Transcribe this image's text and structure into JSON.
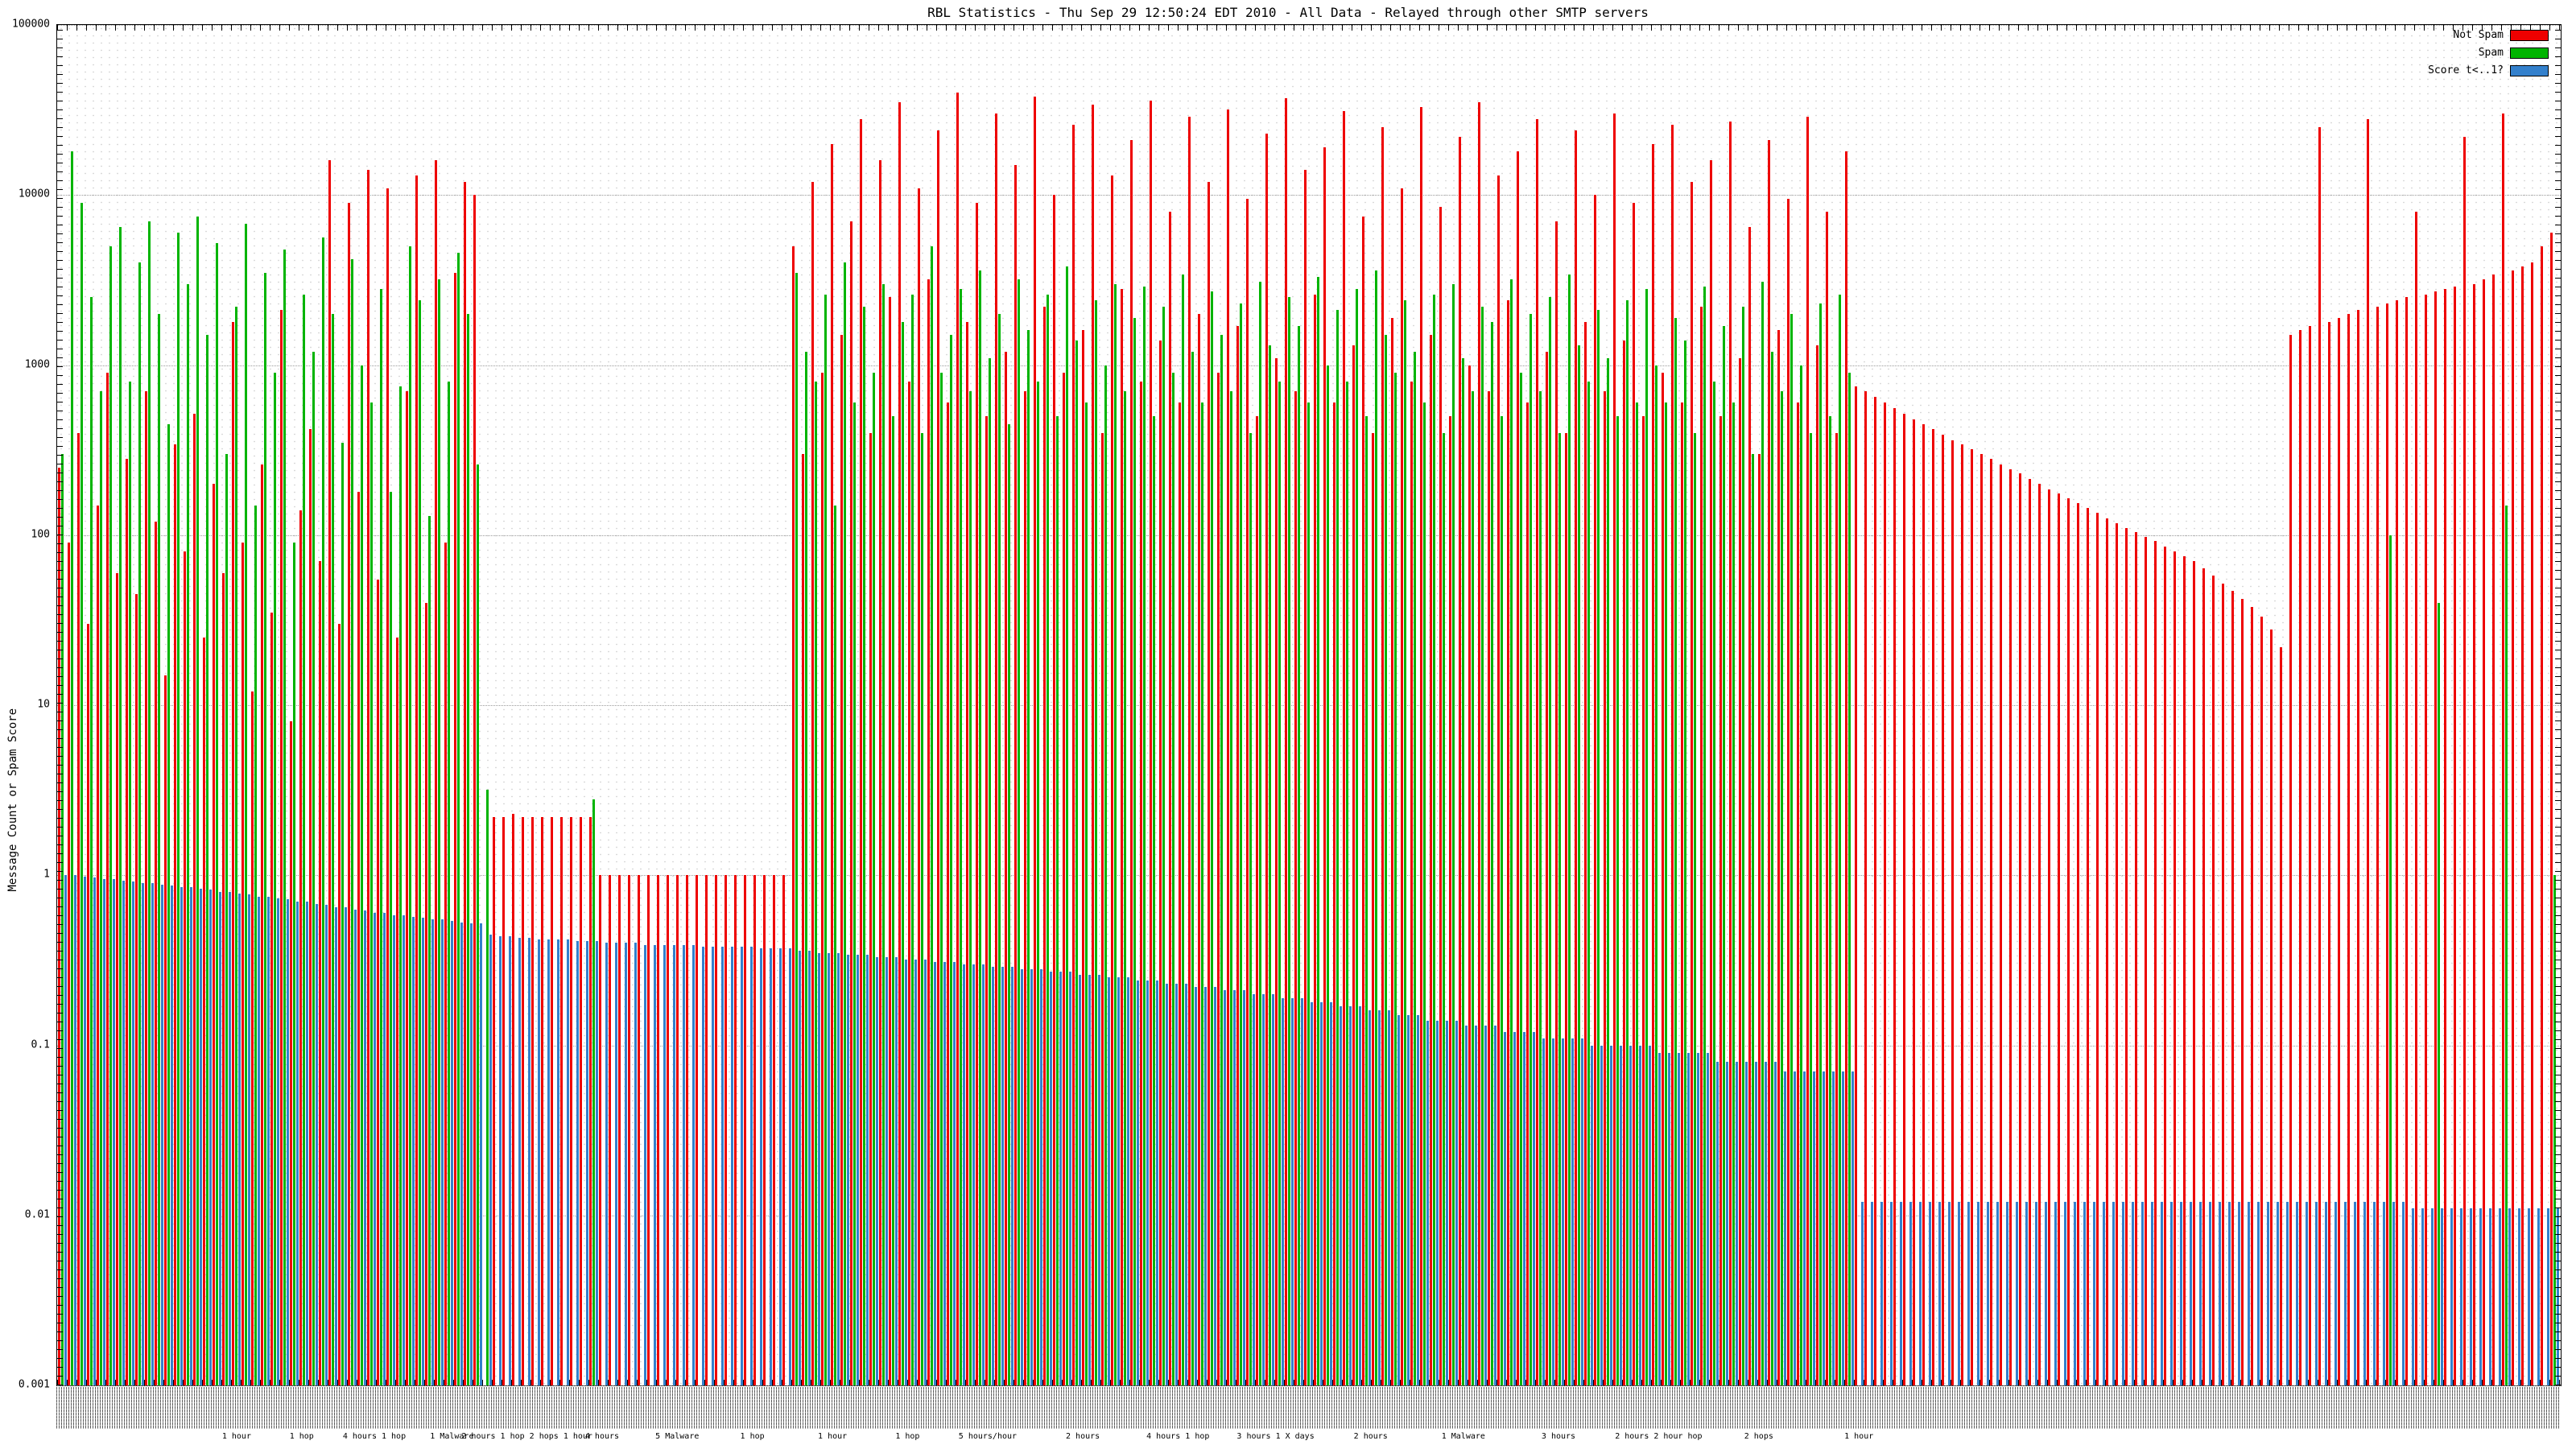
{
  "page": {
    "background": "#ffffff"
  },
  "chart_data": {
    "type": "bar",
    "title": "RBL Statistics - Thu Sep 29 12:50:24 EDT 2010 - All Data - Relayed through other SMTP servers",
    "ylabel": "Message Count or Spam Score",
    "xlabel": "",
    "y_scale": "log",
    "ylim": [
      0.001,
      100000
    ],
    "y_ticks": [
      "100000",
      "10000",
      "1000",
      "100",
      "10",
      "1",
      "0.1",
      "0.01",
      "0.001"
    ],
    "grid": "fine dotted minor grid, dotted major decade lines",
    "legend_position": "top-right",
    "series_names": [
      "Not Spam",
      "Spam",
      "Score t<..1?"
    ],
    "series_colors": [
      "#ee0000",
      "#00b400",
      "#3380cc"
    ],
    "x_tick_labels": "dense rotated RBL/source labels along axis, illegible at capture resolution",
    "x_annotations": [
      {
        "pos": 0.072,
        "label": "1 hour"
      },
      {
        "pos": 0.098,
        "label": "1 hop"
      },
      {
        "pos": 0.127,
        "label": "4 hours 1 hop"
      },
      {
        "pos": 0.158,
        "label": "1 Malware"
      },
      {
        "pos": 0.188,
        "label": "2 hours 1 hop 2 hops 1 hour"
      },
      {
        "pos": 0.218,
        "label": "4 hours"
      },
      {
        "pos": 0.248,
        "label": "5 Malware"
      },
      {
        "pos": 0.278,
        "label": "1 hop"
      },
      {
        "pos": 0.31,
        "label": "1 hour"
      },
      {
        "pos": 0.34,
        "label": "1 hop"
      },
      {
        "pos": 0.372,
        "label": "5 hours/hour"
      },
      {
        "pos": 0.41,
        "label": "2 hours"
      },
      {
        "pos": 0.448,
        "label": "4 hours 1 hop"
      },
      {
        "pos": 0.487,
        "label": "3 hours 1 X days"
      },
      {
        "pos": 0.525,
        "label": "2 hours"
      },
      {
        "pos": 0.562,
        "label": "1 Malware"
      },
      {
        "pos": 0.6,
        "label": "3 hours"
      },
      {
        "pos": 0.64,
        "label": "2 hours 2 hour hop"
      },
      {
        "pos": 0.68,
        "label": "2 hops"
      },
      {
        "pos": 0.72,
        "label": "1 hour"
      }
    ],
    "groups": [
      [
        250,
        300,
        1.0
      ],
      [
        90,
        18000,
        1.0
      ],
      [
        400,
        9000,
        0.98
      ],
      [
        30,
        2500,
        0.97
      ],
      [
        150,
        700,
        0.95
      ],
      [
        900,
        5000,
        0.95
      ],
      [
        60,
        6500,
        0.93
      ],
      [
        280,
        800,
        0.92
      ],
      [
        45,
        4000,
        0.9
      ],
      [
        700,
        7000,
        0.9
      ],
      [
        120,
        2000,
        0.88
      ],
      [
        15,
        450,
        0.87
      ],
      [
        340,
        6000,
        0.85
      ],
      [
        80,
        3000,
        0.85
      ],
      [
        520,
        7500,
        0.83
      ],
      [
        25,
        1500,
        0.82
      ],
      [
        200,
        5200,
        0.8
      ],
      [
        60,
        300,
        0.8
      ],
      [
        1800,
        2200,
        0.78
      ],
      [
        90,
        6800,
        0.77
      ],
      [
        12,
        150,
        0.75
      ],
      [
        260,
        3500,
        0.75
      ],
      [
        35,
        900,
        0.73
      ],
      [
        2100,
        4800,
        0.72
      ],
      [
        8,
        90,
        0.7
      ],
      [
        140,
        2600,
        0.7
      ],
      [
        420,
        1200,
        0.68
      ],
      [
        70,
        5600,
        0.67
      ],
      [
        16000,
        2000,
        0.65
      ],
      [
        30,
        350,
        0.65
      ],
      [
        9000,
        4200,
        0.63
      ],
      [
        180,
        1000,
        0.62
      ],
      [
        14000,
        600,
        0.6
      ],
      [
        55,
        2800,
        0.6
      ],
      [
        11000,
        180,
        0.58
      ],
      [
        25,
        750,
        0.58
      ],
      [
        700,
        5000,
        0.57
      ],
      [
        13000,
        2400,
        0.56
      ],
      [
        40,
        130,
        0.55
      ],
      [
        16000,
        3200,
        0.55
      ],
      [
        90,
        800,
        0.54
      ],
      [
        3500,
        4600,
        0.53
      ],
      [
        12000,
        2000,
        0.52
      ],
      [
        10000,
        260,
        0.52
      ],
      [
        0.001,
        3.2,
        0.45
      ],
      [
        2.2,
        0.001,
        0.44
      ],
      [
        2.2,
        0.001,
        0.44
      ],
      [
        2.3,
        0.001,
        0.43
      ],
      [
        2.2,
        0.001,
        0.43
      ],
      [
        2.2,
        0.001,
        0.42
      ],
      [
        2.2,
        0.001,
        0.42
      ],
      [
        2.2,
        0.001,
        0.42
      ],
      [
        2.2,
        0.001,
        0.42
      ],
      [
        2.2,
        0.001,
        0.41
      ],
      [
        2.2,
        0.001,
        0.41
      ],
      [
        2.2,
        2.8,
        0.41
      ],
      [
        1,
        0.001,
        0.4
      ],
      [
        1,
        0.001,
        0.4
      ],
      [
        1,
        0.001,
        0.4
      ],
      [
        1,
        0.001,
        0.4
      ],
      [
        1,
        0.001,
        0.39
      ],
      [
        1,
        0.001,
        0.39
      ],
      [
        1,
        0.001,
        0.39
      ],
      [
        1,
        0.001,
        0.39
      ],
      [
        1,
        0.001,
        0.39
      ],
      [
        1,
        0.001,
        0.39
      ],
      [
        1,
        0.001,
        0.38
      ],
      [
        1,
        0.001,
        0.38
      ],
      [
        1,
        0.001,
        0.38
      ],
      [
        1,
        0.001,
        0.38
      ],
      [
        1,
        0.001,
        0.38
      ],
      [
        1,
        0.001,
        0.38
      ],
      [
        1,
        0.001,
        0.37
      ],
      [
        1,
        0.001,
        0.37
      ],
      [
        1,
        0.001,
        0.37
      ],
      [
        1,
        0.001,
        0.37
      ],
      [
        5000,
        3500,
        0.36
      ],
      [
        300,
        1200,
        0.36
      ],
      [
        12000,
        800,
        0.35
      ],
      [
        900,
        2600,
        0.35
      ],
      [
        20000,
        150,
        0.35
      ],
      [
        1500,
        4000,
        0.34
      ],
      [
        7000,
        600,
        0.34
      ],
      [
        28000,
        2200,
        0.34
      ],
      [
        400,
        900,
        0.33
      ],
      [
        16000,
        3000,
        0.33
      ],
      [
        2500,
        500,
        0.33
      ],
      [
        35000,
        1800,
        0.32
      ],
      [
        800,
        2600,
        0.32
      ],
      [
        11000,
        400,
        0.32
      ],
      [
        3200,
        5000,
        0.31
      ],
      [
        24000,
        900,
        0.31
      ],
      [
        600,
        1500,
        0.31
      ],
      [
        40000,
        2800,
        0.3
      ],
      [
        1800,
        700,
        0.3
      ],
      [
        9000,
        3600,
        0.3
      ],
      [
        500,
        1100,
        0.29
      ],
      [
        30000,
        2000,
        0.29
      ],
      [
        1200,
        450,
        0.29
      ],
      [
        15000,
        3200,
        0.28
      ],
      [
        700,
        1600,
        0.28
      ],
      [
        38000,
        800,
        0.28
      ],
      [
        2200,
        2600,
        0.27
      ],
      [
        10000,
        500,
        0.27
      ],
      [
        900,
        3800,
        0.27
      ],
      [
        26000,
        1400,
        0.26
      ],
      [
        1600,
        600,
        0.26
      ],
      [
        34000,
        2400,
        0.26
      ],
      [
        400,
        1000,
        0.25
      ],
      [
        13000,
        3000,
        0.25
      ],
      [
        2800,
        700,
        0.25
      ],
      [
        21000,
        1900,
        0.24
      ],
      [
        800,
        2900,
        0.24
      ],
      [
        36000,
        500,
        0.24
      ],
      [
        1400,
        2200,
        0.23
      ],
      [
        8000,
        900,
        0.23
      ],
      [
        600,
        3400,
        0.23
      ],
      [
        29000,
        1200,
        0.22
      ],
      [
        2000,
        600,
        0.22
      ],
      [
        12000,
        2700,
        0.22
      ],
      [
        900,
        1500,
        0.21
      ],
      [
        32000,
        700,
        0.21
      ],
      [
        1700,
        2300,
        0.21
      ],
      [
        9500,
        400,
        0.2
      ],
      [
        500,
        3100,
        0.2
      ],
      [
        23000,
        1300,
        0.2
      ],
      [
        1100,
        800,
        0.19
      ],
      [
        37000,
        2500,
        0.19
      ],
      [
        700,
        1700,
        0.19
      ],
      [
        14000,
        600,
        0.18
      ],
      [
        2600,
        3300,
        0.18
      ],
      [
        19000,
        1000,
        0.18
      ],
      [
        600,
        2100,
        0.17
      ],
      [
        31000,
        800,
        0.17
      ],
      [
        1300,
        2800,
        0.17
      ],
      [
        7500,
        500,
        0.16
      ],
      [
        400,
        3600,
        0.16
      ],
      [
        25000,
        1500,
        0.16
      ],
      [
        1900,
        900,
        0.15
      ],
      [
        11000,
        2400,
        0.15
      ],
      [
        800,
        1200,
        0.15
      ],
      [
        33000,
        600,
        0.14
      ],
      [
        1500,
        2600,
        0.14
      ],
      [
        8500,
        400,
        0.14
      ],
      [
        500,
        3000,
        0.14
      ],
      [
        22000,
        1100,
        0.13
      ],
      [
        1000,
        700,
        0.13
      ],
      [
        35000,
        2200,
        0.13
      ],
      [
        700,
        1800,
        0.13
      ],
      [
        13000,
        500,
        0.12
      ],
      [
        2400,
        3200,
        0.12
      ],
      [
        18000,
        900,
        0.12
      ],
      [
        600,
        2000,
        0.12
      ],
      [
        28000,
        700,
        0.11
      ],
      [
        1200,
        2500,
        0.11
      ],
      [
        7000,
        400,
        0.11
      ],
      [
        400,
        3400,
        0.11
      ],
      [
        24000,
        1300,
        0.11
      ],
      [
        1800,
        800,
        0.1
      ],
      [
        10000,
        2100,
        0.1
      ],
      [
        700,
        1100,
        0.1
      ],
      [
        30000,
        500,
        0.1
      ],
      [
        1400,
        2400,
        0.1
      ],
      [
        9000,
        600,
        0.1
      ],
      [
        500,
        2800,
        0.1
      ],
      [
        20000,
        1000,
        0.09
      ],
      [
        900,
        600,
        0.09
      ],
      [
        26000,
        1900,
        0.09
      ],
      [
        600,
        1400,
        0.09
      ],
      [
        12000,
        400,
        0.09
      ],
      [
        2200,
        2900,
        0.09
      ],
      [
        16000,
        800,
        0.08
      ],
      [
        500,
        1700,
        0.08
      ],
      [
        27000,
        600,
        0.08
      ],
      [
        1100,
        2200,
        0.08
      ],
      [
        6500,
        300,
        0.08
      ],
      [
        300,
        3100,
        0.08
      ],
      [
        21000,
        1200,
        0.08
      ],
      [
        1600,
        700,
        0.07
      ],
      [
        9500,
        2000,
        0.07
      ],
      [
        600,
        1000,
        0.07
      ],
      [
        29000,
        400,
        0.07
      ],
      [
        1300,
        2300,
        0.07
      ],
      [
        8000,
        500,
        0.07
      ],
      [
        400,
        2600,
        0.07
      ],
      [
        18000,
        900,
        0.07
      ],
      [
        750,
        0.001,
        0.012
      ],
      [
        700,
        0.001,
        0.012
      ],
      [
        650,
        0.001,
        0.012
      ],
      [
        600,
        0.001,
        0.012
      ],
      [
        560,
        0.001,
        0.012
      ],
      [
        520,
        0.001,
        0.012
      ],
      [
        480,
        0.001,
        0.012
      ],
      [
        450,
        0.001,
        0.012
      ],
      [
        420,
        0.001,
        0.012
      ],
      [
        390,
        0.001,
        0.012
      ],
      [
        360,
        0.001,
        0.012
      ],
      [
        340,
        0.001,
        0.012
      ],
      [
        320,
        0.001,
        0.012
      ],
      [
        300,
        0.001,
        0.012
      ],
      [
        280,
        0.001,
        0.012
      ],
      [
        260,
        0.001,
        0.012
      ],
      [
        245,
        0.001,
        0.012
      ],
      [
        230,
        0.001,
        0.012
      ],
      [
        215,
        0.001,
        0.012
      ],
      [
        200,
        0.001,
        0.012
      ],
      [
        185,
        0.001,
        0.012
      ],
      [
        175,
        0.001,
        0.012
      ],
      [
        165,
        0.001,
        0.012
      ],
      [
        155,
        0.001,
        0.012
      ],
      [
        145,
        0.001,
        0.012
      ],
      [
        135,
        0.001,
        0.012
      ],
      [
        125,
        0.001,
        0.012
      ],
      [
        118,
        0.001,
        0.012
      ],
      [
        110,
        0.001,
        0.012
      ],
      [
        104,
        0.001,
        0.012
      ],
      [
        98,
        0.001,
        0.012
      ],
      [
        92,
        0.001,
        0.012
      ],
      [
        86,
        0.001,
        0.012
      ],
      [
        80,
        0.001,
        0.012
      ],
      [
        75,
        0.001,
        0.012
      ],
      [
        70,
        0.001,
        0.012
      ],
      [
        64,
        0.001,
        0.012
      ],
      [
        58,
        0.001,
        0.012
      ],
      [
        52,
        0.001,
        0.012
      ],
      [
        47,
        0.001,
        0.012
      ],
      [
        42,
        0.001,
        0.012
      ],
      [
        38,
        0.001,
        0.012
      ],
      [
        33,
        0.001,
        0.012
      ],
      [
        28,
        0.001,
        0.012
      ],
      [
        22,
        0.001,
        0.012
      ],
      [
        1500,
        0.001,
        0.012
      ],
      [
        1600,
        0.001,
        0.012
      ],
      [
        1700,
        0.001,
        0.012
      ],
      [
        25000,
        0.001,
        0.012
      ],
      [
        1800,
        0.001,
        0.012
      ],
      [
        1900,
        0.001,
        0.012
      ],
      [
        2000,
        0.001,
        0.012
      ],
      [
        2100,
        0.001,
        0.012
      ],
      [
        28000,
        0.001,
        0.012
      ],
      [
        2200,
        0.001,
        0.012
      ],
      [
        2300,
        100,
        0.012
      ],
      [
        2400,
        0.001,
        0.012
      ],
      [
        2500,
        0.001,
        0.011
      ],
      [
        8000,
        0.001,
        0.011
      ],
      [
        2600,
        0.001,
        0.011
      ],
      [
        2700,
        40,
        0.011
      ],
      [
        2800,
        0.001,
        0.011
      ],
      [
        2900,
        0.001,
        0.011
      ],
      [
        22000,
        0.001,
        0.011
      ],
      [
        3000,
        0.001,
        0.011
      ],
      [
        3200,
        0.001,
        0.011
      ],
      [
        3400,
        0.001,
        0.011
      ],
      [
        30000,
        150,
        0.011
      ],
      [
        3600,
        0.001,
        0.011
      ],
      [
        3800,
        0.001,
        0.011
      ],
      [
        4000,
        0.001,
        0.011
      ],
      [
        5000,
        0.001,
        0.011
      ],
      [
        6000,
        1.0,
        0.011
      ]
    ]
  }
}
